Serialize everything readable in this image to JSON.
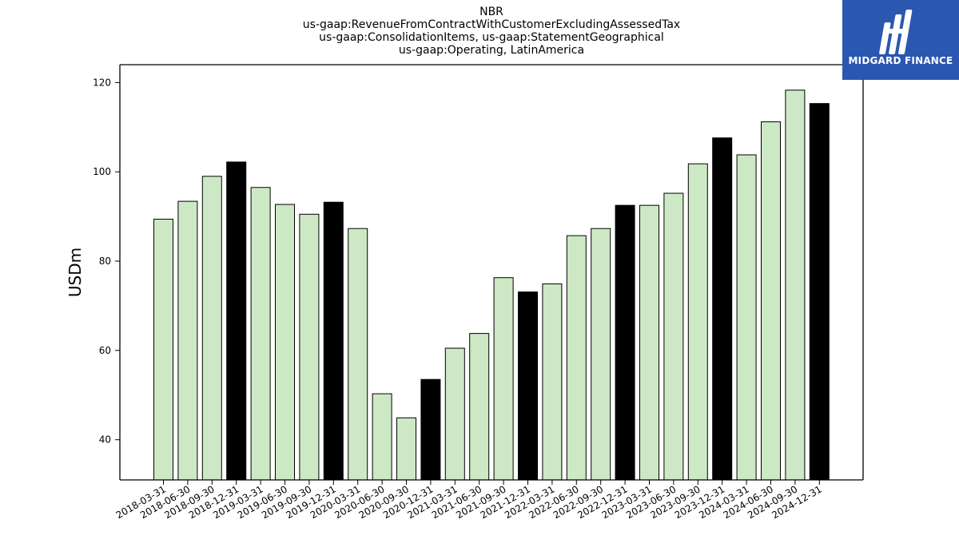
{
  "title_lines": [
    "NBR",
    "us-gaap:RevenueFromContractWithCustomerExcludingAssessedTax",
    "us-gaap:ConsolidationItems, us-gaap:StatementGeographical",
    "us-gaap:Operating, LatinAmerica"
  ],
  "logo": {
    "text": "MIDGARD FINANCE"
  },
  "colors": {
    "quarter_bar": "#cde8c5",
    "year_end_bar": "#000000",
    "logo_bg": "#2a57b0"
  },
  "chart_data": {
    "type": "bar",
    "ylabel": "USDm",
    "xlabel": "",
    "ylim": [
      31,
      124
    ],
    "yticks": [
      40,
      60,
      80,
      100,
      120
    ],
    "categories": [
      "2018-03-31",
      "2018-06-30",
      "2018-09-30",
      "2018-12-31",
      "2019-03-31",
      "2019-06-30",
      "2019-09-30",
      "2019-12-31",
      "2020-03-31",
      "2020-06-30",
      "2020-09-30",
      "2020-12-31",
      "2021-03-31",
      "2021-06-30",
      "2021-09-30",
      "2021-12-31",
      "2022-03-31",
      "2022-06-30",
      "2022-09-30",
      "2022-12-31",
      "2023-03-31",
      "2023-06-30",
      "2023-09-30",
      "2023-12-31",
      "2024-03-31",
      "2024-06-30",
      "2024-09-30",
      "2024-12-31"
    ],
    "values": [
      89.4,
      93.4,
      99.0,
      102.2,
      96.5,
      92.7,
      90.5,
      93.2,
      87.3,
      50.3,
      44.9,
      53.5,
      60.5,
      63.8,
      76.3,
      73.1,
      74.9,
      85.7,
      87.3,
      92.5,
      92.5,
      95.2,
      101.8,
      107.6,
      103.8,
      111.2,
      118.3,
      115.3
    ],
    "highlight_year_end": true,
    "grid": false
  }
}
